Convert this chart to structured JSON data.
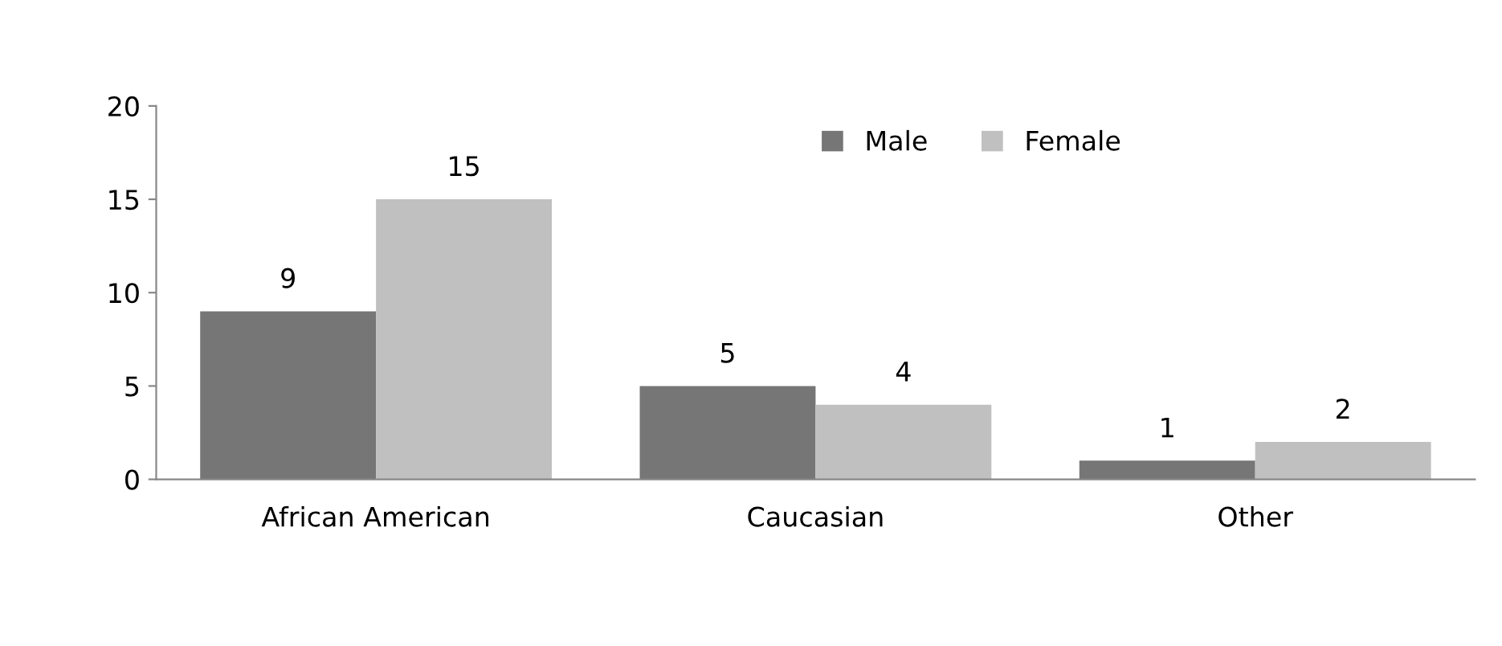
{
  "chart_data": {
    "type": "bar",
    "categories": [
      "African American",
      "Caucasian",
      "Other"
    ],
    "series": [
      {
        "name": "Male",
        "color": "#767676",
        "values": [
          9,
          5,
          1
        ]
      },
      {
        "name": "Female",
        "color": "#c0c0c0",
        "values": [
          15,
          4,
          2
        ]
      }
    ],
    "ylim": [
      0,
      20
    ],
    "yticks": [
      0,
      5,
      10,
      15,
      20
    ],
    "grid": false,
    "legend": "top right",
    "data_labels": true
  }
}
